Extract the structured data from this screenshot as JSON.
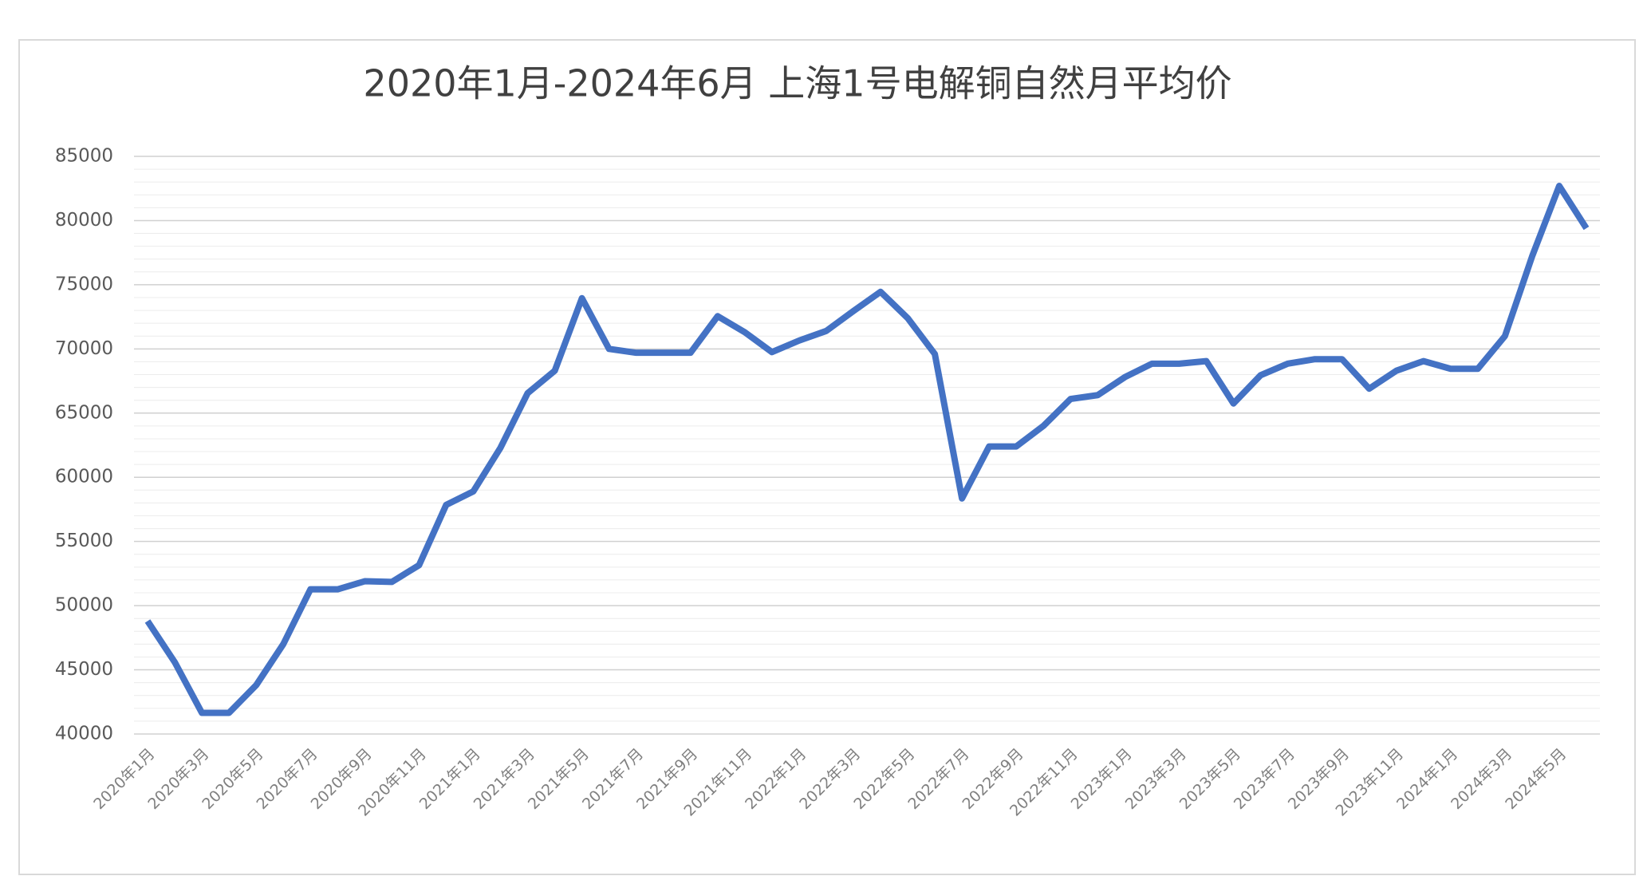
{
  "chart_data": {
    "type": "line",
    "title": "2020年1月-2024年6月 上海1号电解铜自然月平均价",
    "categories": [
      "2020年1月",
      null,
      "2020年3月",
      null,
      "2020年5月",
      null,
      "2020年7月",
      null,
      "2020年9月",
      null,
      "2020年11月",
      null,
      "2021年1月",
      null,
      "2021年3月",
      null,
      "2021年5月",
      null,
      "2021年7月",
      null,
      "2021年9月",
      null,
      "2021年11月",
      null,
      "2022年1月",
      null,
      "2022年3月",
      null,
      "2022年5月",
      null,
      "2022年7月",
      null,
      "2022年9月",
      null,
      "2022年11月",
      null,
      "2023年1月",
      null,
      "2023年3月",
      null,
      "2023年5月",
      null,
      "2023年7月",
      null,
      "2023年9月",
      null,
      "2023年11月",
      null,
      "2024年1月",
      null,
      "2024年3月",
      null,
      "2024年5月",
      null
    ],
    "series": [
      {
        "color": "#4472c4",
        "values": [
          48800,
          45600,
          41650,
          41650,
          43800,
          47000,
          51270,
          51270,
          51900,
          51850,
          53150,
          57850,
          58900,
          62300,
          66550,
          68300,
          73950,
          70000,
          69700,
          69700,
          69700,
          72550,
          71300,
          69750,
          70650,
          71400,
          72950,
          74450,
          72400,
          69600,
          58350,
          62400,
          62400,
          64000,
          66100,
          66400,
          67800,
          68850,
          68850,
          69050,
          65750,
          67950,
          68850,
          69200,
          69200,
          66900,
          68300,
          69050,
          68450,
          68450,
          71000,
          77200,
          82700,
          79400
        ]
      }
    ],
    "ylim": [
      40000,
      85000
    ],
    "yticks": [
      40000,
      45000,
      50000,
      55000,
      60000,
      65000,
      70000,
      75000,
      80000,
      85000
    ],
    "grid": true,
    "minor_grid": true
  }
}
